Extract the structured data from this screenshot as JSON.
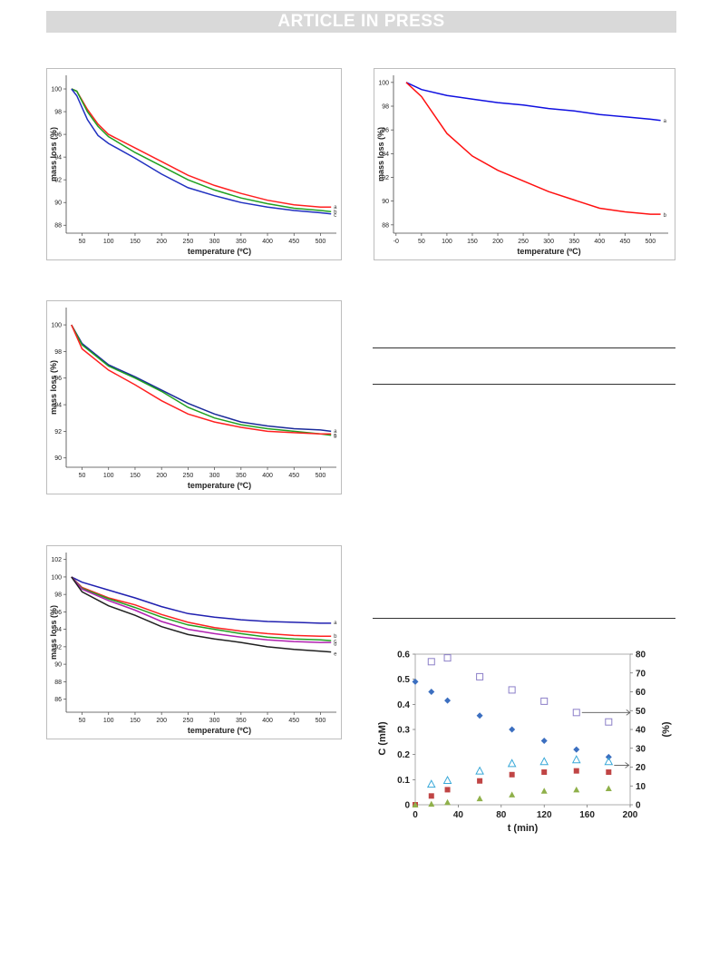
{
  "header": {
    "banner": "ARTICLE IN PRESS"
  },
  "chart_data": [
    {
      "type": "line",
      "xlabel": "temperature (ºC)",
      "ylabel": "mass loss (%)",
      "xlim": [
        20,
        530
      ],
      "ylim": [
        87.3,
        101.2
      ],
      "xticks": [
        50,
        100,
        150,
        200,
        250,
        300,
        350,
        400,
        450,
        500
      ],
      "yticks": [
        88,
        90,
        92,
        94,
        96,
        98,
        100
      ],
      "series": [
        {
          "name": "a",
          "color": "#ff2020",
          "x": [
            30,
            40,
            60,
            80,
            100,
            150,
            200,
            250,
            300,
            350,
            400,
            450,
            500,
            520
          ],
          "y": [
            100,
            99.8,
            98.2,
            96.9,
            96.0,
            94.8,
            93.6,
            92.4,
            91.5,
            90.8,
            90.2,
            89.8,
            89.6,
            89.6
          ]
        },
        {
          "name": "b",
          "color": "#20a020",
          "x": [
            30,
            40,
            60,
            80,
            100,
            150,
            200,
            250,
            300,
            350,
            400,
            450,
            500,
            520
          ],
          "y": [
            100,
            99.8,
            98.0,
            96.7,
            95.8,
            94.4,
            93.2,
            92.0,
            91.1,
            90.4,
            89.9,
            89.5,
            89.3,
            89.2
          ]
        },
        {
          "name": "c",
          "color": "#2030c0",
          "x": [
            30,
            40,
            60,
            80,
            100,
            150,
            200,
            250,
            300,
            350,
            400,
            450,
            500,
            520
          ],
          "y": [
            100,
            99.4,
            97.3,
            95.9,
            95.2,
            93.9,
            92.5,
            91.3,
            90.6,
            90.0,
            89.6,
            89.3,
            89.1,
            89.0
          ]
        }
      ]
    },
    {
      "type": "line",
      "xlabel": "temperature (ºC)",
      "ylabel": "mass loss (%)",
      "xlim": [
        -5,
        535
      ],
      "ylim": [
        87.3,
        100.6
      ],
      "xticks": [
        0,
        50,
        100,
        150,
        200,
        250,
        300,
        350,
        400,
        450,
        500
      ],
      "xticklabels": [
        "-0",
        "50",
        "100",
        "150",
        "200",
        "250",
        "300",
        "350",
        "400",
        "450",
        "500"
      ],
      "yticks": [
        88,
        90,
        92,
        94,
        96,
        98,
        100
      ],
      "series": [
        {
          "name": "a",
          "color": "#1010e0",
          "x": [
            20,
            50,
            100,
            150,
            200,
            250,
            300,
            350,
            400,
            450,
            500,
            520
          ],
          "y": [
            100,
            99.4,
            98.9,
            98.6,
            98.3,
            98.1,
            97.8,
            97.6,
            97.3,
            97.1,
            96.9,
            96.8
          ]
        },
        {
          "name": "b",
          "color": "#ff1010",
          "x": [
            20,
            50,
            100,
            150,
            200,
            250,
            300,
            350,
            400,
            450,
            500,
            520
          ],
          "y": [
            100,
            98.8,
            95.7,
            93.8,
            92.6,
            91.7,
            90.8,
            90.1,
            89.4,
            89.1,
            88.9,
            88.9
          ]
        }
      ]
    },
    {
      "type": "line",
      "xlabel": "temperature (ºC)",
      "ylabel": "mass loss (%)",
      "xlim": [
        20,
        530
      ],
      "ylim": [
        89.3,
        101.3
      ],
      "xticks": [
        50,
        100,
        150,
        200,
        250,
        300,
        350,
        400,
        450,
        500
      ],
      "yticks": [
        90,
        92,
        94,
        96,
        98,
        100
      ],
      "series": [
        {
          "name": "a",
          "color": "#1a2a9a",
          "x": [
            30,
            50,
            100,
            150,
            200,
            250,
            300,
            350,
            400,
            450,
            500,
            520
          ],
          "y": [
            100,
            98.6,
            97.0,
            96.1,
            95.1,
            94.1,
            93.3,
            92.7,
            92.4,
            92.2,
            92.1,
            92.0
          ]
        },
        {
          "name": "b",
          "color": "#20a020",
          "x": [
            30,
            50,
            100,
            150,
            200,
            250,
            300,
            350,
            400,
            450,
            500,
            520
          ],
          "y": [
            100,
            98.5,
            96.9,
            96.0,
            95.0,
            93.8,
            93.0,
            92.5,
            92.2,
            92.0,
            91.8,
            91.7
          ]
        },
        {
          "name": "c",
          "color": "#ff2020",
          "x": [
            30,
            50,
            100,
            150,
            200,
            250,
            300,
            350,
            400,
            450,
            500,
            520
          ],
          "y": [
            100,
            98.2,
            96.6,
            95.5,
            94.3,
            93.3,
            92.7,
            92.3,
            92.0,
            91.9,
            91.8,
            91.8
          ]
        }
      ]
    },
    {
      "type": "line",
      "xlabel": "temperature (ºC)",
      "ylabel": "mass loss (%)",
      "xlim": [
        20,
        530
      ],
      "ylim": [
        84.5,
        102.8
      ],
      "xticks": [
        50,
        100,
        150,
        200,
        250,
        300,
        350,
        400,
        450,
        500
      ],
      "yticks": [
        86,
        88,
        90,
        92,
        94,
        96,
        98,
        100,
        102
      ],
      "series": [
        {
          "name": "a",
          "color": "#2020b0",
          "x": [
            30,
            50,
            100,
            150,
            200,
            250,
            300,
            350,
            400,
            450,
            500,
            520
          ],
          "y": [
            100,
            99.4,
            98.5,
            97.6,
            96.6,
            95.8,
            95.4,
            95.1,
            94.9,
            94.8,
            94.7,
            94.7
          ]
        },
        {
          "name": "b",
          "color": "#ff2020",
          "x": [
            30,
            50,
            100,
            150,
            200,
            250,
            300,
            350,
            400,
            450,
            500,
            520
          ],
          "y": [
            100,
            98.8,
            97.6,
            96.8,
            95.7,
            94.8,
            94.2,
            93.8,
            93.5,
            93.3,
            93.2,
            93.2
          ]
        },
        {
          "name": "c",
          "color": "#20a020",
          "x": [
            30,
            50,
            100,
            150,
            200,
            250,
            300,
            350,
            400,
            450,
            500,
            520
          ],
          "y": [
            100,
            98.7,
            97.5,
            96.5,
            95.4,
            94.5,
            94.0,
            93.5,
            93.1,
            92.9,
            92.8,
            92.7
          ]
        },
        {
          "name": "d",
          "color": "#b020b0",
          "x": [
            30,
            50,
            100,
            150,
            200,
            250,
            300,
            350,
            400,
            450,
            500,
            520
          ],
          "y": [
            100,
            98.6,
            97.3,
            96.2,
            94.9,
            94.0,
            93.5,
            93.1,
            92.8,
            92.6,
            92.5,
            92.5
          ]
        },
        {
          "name": "e",
          "color": "#202020",
          "x": [
            30,
            50,
            100,
            150,
            200,
            250,
            300,
            350,
            400,
            450,
            500,
            520
          ],
          "y": [
            100,
            98.3,
            96.7,
            95.6,
            94.3,
            93.4,
            92.9,
            92.5,
            92.0,
            91.7,
            91.5,
            91.4
          ]
        }
      ]
    },
    {
      "type": "scatter",
      "xlabel": "t (min)",
      "ylabel": "C (mM)",
      "y2label": "(%)",
      "xlim": [
        0,
        200
      ],
      "ylim": [
        0,
        0.6
      ],
      "y2lim": [
        0,
        80
      ],
      "xticks": [
        0,
        40,
        80,
        120,
        160,
        200
      ],
      "yticks": [
        0,
        0.1,
        0.2,
        0.3,
        0.4,
        0.5,
        0.6
      ],
      "y2ticks": [
        0,
        10,
        20,
        30,
        40,
        50,
        60,
        70,
        80
      ],
      "series": [
        {
          "axis": "left",
          "marker": "diamond",
          "color": "#3c6fc0",
          "x": [
            0,
            15,
            30,
            60,
            90,
            120,
            150,
            180
          ],
          "y": [
            0.49,
            0.45,
            0.415,
            0.355,
            0.3,
            0.255,
            0.22,
            0.19
          ]
        },
        {
          "axis": "left",
          "marker": "square",
          "color": "#c04545",
          "x": [
            0,
            15,
            30,
            60,
            90,
            120,
            150,
            180
          ],
          "y": [
            0,
            0.035,
            0.06,
            0.095,
            0.12,
            0.13,
            0.135,
            0.13
          ]
        },
        {
          "axis": "left",
          "marker": "triangle",
          "color": "#8fb04a",
          "x": [
            0,
            15,
            30,
            60,
            90,
            120,
            150,
            180
          ],
          "y": [
            0,
            0.003,
            0.01,
            0.025,
            0.04,
            0.055,
            0.06,
            0.065
          ]
        },
        {
          "axis": "right",
          "marker": "open-square",
          "color": "#8c7fc8",
          "x": [
            15,
            30,
            60,
            90,
            120,
            150,
            180
          ],
          "y": [
            76,
            78,
            68,
            61,
            55,
            49,
            44
          ]
        },
        {
          "axis": "right",
          "marker": "open-triangle",
          "color": "#38a8d8",
          "x": [
            15,
            30,
            60,
            90,
            120,
            150,
            180
          ],
          "y": [
            11,
            13,
            18,
            22,
            23,
            24,
            23
          ]
        }
      ],
      "annotations": [
        {
          "from": [
            150,
            49
          ],
          "to": [
            188,
            49
          ]
        },
        {
          "from": [
            180,
            21
          ],
          "to": [
            187,
            21
          ]
        }
      ]
    }
  ]
}
